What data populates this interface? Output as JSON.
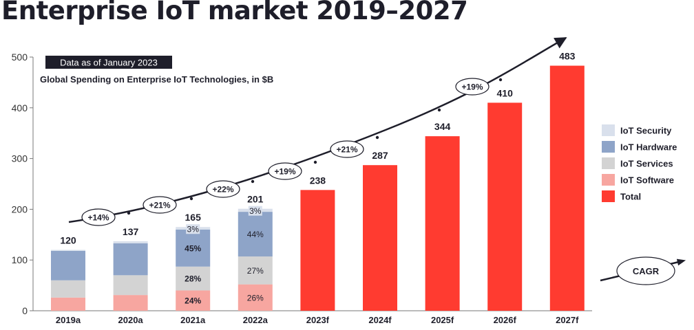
{
  "page": {
    "title": "Enterprise IoT market 2019–2027"
  },
  "colors": {
    "security": "#d9e0ec",
    "hardware": "#8ea4c8",
    "services": "#d3d3d3",
    "software": "#f7a6a0",
    "total": "#ff3b30",
    "text": "#1e1e2a",
    "axis": "#777777"
  },
  "chart_data": {
    "type": "bar",
    "note": "Data as of January 2023",
    "subtitle": "Global Spending on Enterprise IoT Technologies, in $B",
    "ylim": [
      0,
      500
    ],
    "yticks": [
      0,
      100,
      200,
      300,
      400,
      500
    ],
    "categories": [
      "2019a",
      "2020a",
      "2021a",
      "2022a",
      "2023f",
      "2024f",
      "2025f",
      "2026f",
      "2027f"
    ],
    "totals": [
      120,
      137,
      165,
      201,
      238,
      287,
      344,
      410,
      483
    ],
    "stacked_series": [
      {
        "name": "IoT Software",
        "key": "software",
        "values": [
          26,
          31,
          40,
          52,
          null,
          null,
          null,
          null,
          null
        ]
      },
      {
        "name": "IoT Services",
        "key": "services",
        "values": [
          34,
          39,
          47,
          55,
          null,
          null,
          null,
          null,
          null
        ]
      },
      {
        "name": "IoT Hardware",
        "key": "hardware",
        "values": [
          58,
          63,
          73,
          88,
          null,
          null,
          null,
          null,
          null
        ]
      },
      {
        "name": "IoT Security",
        "key": "security",
        "values": [
          2,
          4,
          5,
          6,
          null,
          null,
          null,
          null,
          null
        ]
      }
    ],
    "total_series": {
      "name": "Total",
      "key": "total",
      "values": [
        null,
        null,
        null,
        null,
        238,
        287,
        344,
        410,
        483
      ]
    },
    "segment_labels": [
      {
        "category": "2021a",
        "key": "software",
        "text": "24%",
        "bold": true
      },
      {
        "category": "2021a",
        "key": "services",
        "text": "28%",
        "bold": true
      },
      {
        "category": "2021a",
        "key": "hardware",
        "text": "45%",
        "bold": true
      },
      {
        "category": "2021a",
        "key": "security",
        "text": "3%",
        "bold": false
      },
      {
        "category": "2022a",
        "key": "software",
        "text": "26%",
        "bold": false
      },
      {
        "category": "2022a",
        "key": "services",
        "text": "27%",
        "bold": false
      },
      {
        "category": "2022a",
        "key": "hardware",
        "text": "44%",
        "bold": false
      },
      {
        "category": "2022a",
        "key": "security",
        "text": "3%",
        "bold": false
      }
    ],
    "growth_labels": [
      {
        "text": "+14%",
        "between": [
          "2019a",
          "2020a"
        ]
      },
      {
        "text": "+21%",
        "between": [
          "2020a",
          "2021a"
        ]
      },
      {
        "text": "+22%",
        "between": [
          "2021a",
          "2022a"
        ]
      },
      {
        "text": "+19%",
        "between": [
          "2022a",
          "2023f"
        ]
      },
      {
        "text": "+21%",
        "between": [
          "2023f",
          "2024f"
        ]
      },
      {
        "text": "+19%",
        "between": [
          "2024f",
          "2025f"
        ]
      }
    ],
    "legend": [
      {
        "label": "IoT Security",
        "key": "security"
      },
      {
        "label": "IoT Hardware",
        "key": "hardware"
      },
      {
        "label": "IoT Services",
        "key": "services"
      },
      {
        "label": "IoT Software",
        "key": "software"
      },
      {
        "label": "Total",
        "key": "total"
      }
    ],
    "cagr_label": "CAGR"
  }
}
